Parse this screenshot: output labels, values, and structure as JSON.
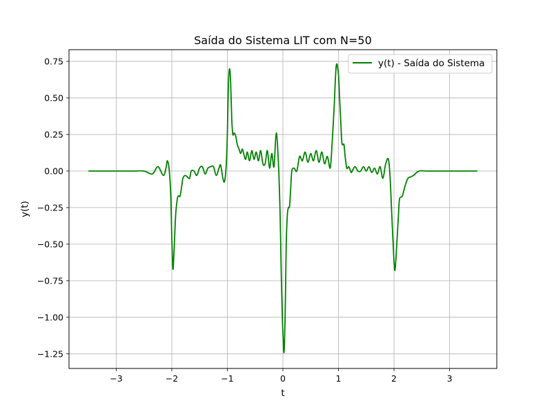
{
  "chart_data": {
    "type": "line",
    "title": "Saída do Sistema LIT com N=50",
    "xlabel": "t",
    "ylabel": "y(t)",
    "xlim": [
      -3.85,
      3.85
    ],
    "ylim": [
      -1.35,
      0.83
    ],
    "xticks": [
      -3,
      -2,
      -1,
      0,
      1,
      2,
      3
    ],
    "xtick_labels": [
      "−3",
      "−2",
      "−1",
      "0",
      "1",
      "2",
      "3"
    ],
    "yticks": [
      0.75,
      0.5,
      0.25,
      0.0,
      -0.25,
      -0.5,
      -0.75,
      -1.0,
      -1.25
    ],
    "ytick_labels": [
      "0.75",
      "0.50",
      "0.25",
      "0.00",
      "−0.25",
      "−0.50",
      "−0.75",
      "−1.00",
      "−1.25"
    ],
    "grid": true,
    "legend_position": "top-right",
    "series": [
      {
        "name": "y(t) - Saída do Sistema",
        "color": "#008000",
        "x": [
          -3.5,
          -3.3,
          -3.1,
          -2.9,
          -2.7,
          -2.5,
          -2.35,
          -2.25,
          -2.15,
          -2.1,
          -2.08,
          -2.05,
          -2.02,
          -2.0,
          -1.98,
          -1.96,
          -1.93,
          -1.9,
          -1.88,
          -1.85,
          -1.82,
          -1.8,
          -1.76,
          -1.72,
          -1.68,
          -1.65,
          -1.6,
          -1.55,
          -1.5,
          -1.45,
          -1.4,
          -1.35,
          -1.3,
          -1.25,
          -1.2,
          -1.15,
          -1.12,
          -1.08,
          -1.05,
          -1.02,
          -1.0,
          -0.98,
          -0.96,
          -0.94,
          -0.92,
          -0.9,
          -0.88,
          -0.85,
          -0.82,
          -0.79,
          -0.76,
          -0.73,
          -0.7,
          -0.67,
          -0.64,
          -0.6,
          -0.56,
          -0.52,
          -0.48,
          -0.44,
          -0.4,
          -0.36,
          -0.32,
          -0.28,
          -0.24,
          -0.2,
          -0.16,
          -0.12,
          -0.08,
          -0.05,
          -0.03,
          -0.01,
          0.0,
          0.02,
          0.04,
          0.05,
          0.06,
          0.08,
          0.1,
          0.12,
          0.14,
          0.16,
          0.2,
          0.25,
          0.3,
          0.35,
          0.4,
          0.45,
          0.5,
          0.55,
          0.6,
          0.65,
          0.7,
          0.75,
          0.8,
          0.85,
          0.88,
          0.92,
          0.96,
          1.0,
          1.02,
          1.04,
          1.06,
          1.08,
          1.1,
          1.12,
          1.15,
          1.18,
          1.2,
          1.23,
          1.26,
          1.3,
          1.35,
          1.4,
          1.45,
          1.5,
          1.55,
          1.6,
          1.65,
          1.7,
          1.75,
          1.8,
          1.85,
          1.9,
          1.93,
          1.96,
          2.0,
          2.02,
          2.05,
          2.08,
          2.1,
          2.15,
          2.2,
          2.25,
          2.3,
          2.35,
          2.45,
          2.6,
          2.8,
          3.0,
          3.2,
          3.5
        ],
        "y": [
          0.0,
          0.0,
          0.0,
          0.0,
          0.0,
          0.0,
          -0.02,
          0.03,
          -0.03,
          0.03,
          0.07,
          0.02,
          -0.15,
          -0.45,
          -0.67,
          -0.55,
          -0.3,
          -0.19,
          -0.17,
          -0.17,
          -0.1,
          -0.05,
          -0.03,
          -0.04,
          -0.05,
          0.0,
          0.0,
          -0.03,
          0.02,
          0.03,
          -0.02,
          0.02,
          0.03,
          0.03,
          -0.03,
          0.02,
          0.04,
          -0.05,
          -0.07,
          0.04,
          0.25,
          0.6,
          0.7,
          0.6,
          0.35,
          0.25,
          0.26,
          0.24,
          0.18,
          0.15,
          0.12,
          0.15,
          0.11,
          0.08,
          0.13,
          0.07,
          0.14,
          0.08,
          0.13,
          0.07,
          0.14,
          0.05,
          0.05,
          0.14,
          0.02,
          0.12,
          0.03,
          0.26,
          0.05,
          -0.3,
          -0.7,
          -1.0,
          -1.1,
          -1.24,
          -1.0,
          -0.75,
          -0.5,
          -0.3,
          -0.25,
          -0.24,
          -0.12,
          0.0,
          0.02,
          0.0,
          0.1,
          0.07,
          0.13,
          0.06,
          0.12,
          0.07,
          0.14,
          0.06,
          0.13,
          0.05,
          0.1,
          0.02,
          0.15,
          0.42,
          0.72,
          0.66,
          0.5,
          0.35,
          0.2,
          0.18,
          0.18,
          0.1,
          0.02,
          0.03,
          0.02,
          -0.01,
          0.01,
          0.03,
          0.0,
          0.0,
          0.03,
          0.0,
          0.03,
          -0.01,
          0.02,
          -0.02,
          0.03,
          -0.05,
          0.05,
          0.08,
          -0.05,
          -0.3,
          -0.62,
          -0.67,
          -0.5,
          -0.3,
          -0.19,
          -0.17,
          -0.1,
          -0.05,
          -0.04,
          -0.03,
          0.0,
          0.0,
          0.0,
          0.0,
          0.0,
          0.0
        ]
      }
    ]
  }
}
